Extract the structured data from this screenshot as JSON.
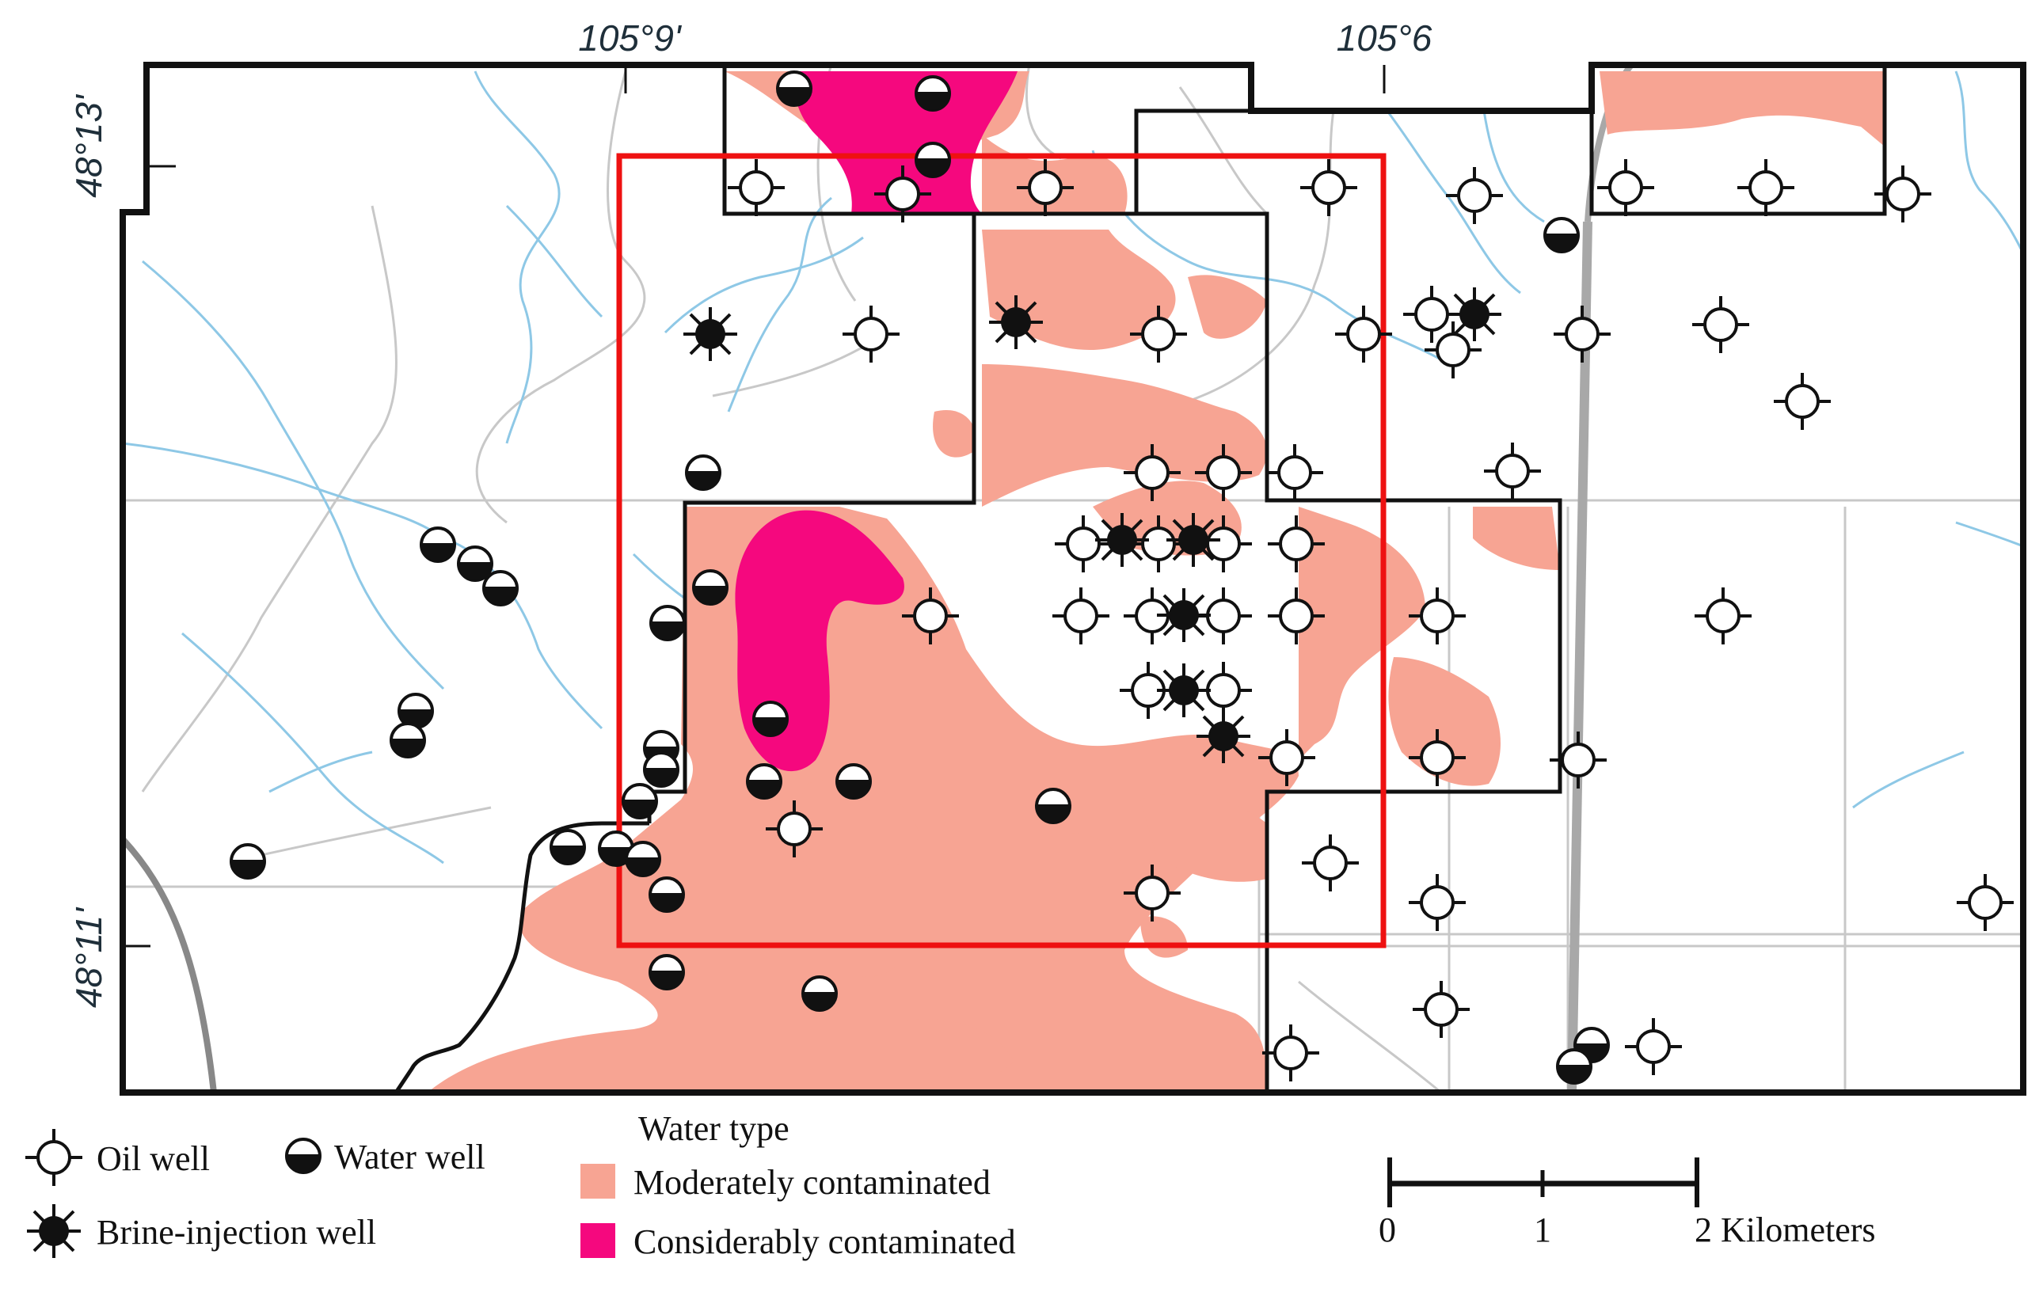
{
  "coordinates": {
    "top": [
      "105°9'",
      "105°6"
    ],
    "left": [
      "48°13'",
      "48°11'"
    ]
  },
  "colors": {
    "moderate": "#f7a493",
    "considerable": "#f5087e",
    "stream": "#8ec8e6",
    "road": "#c8c8c8",
    "boundary": "#111111",
    "study_area": "#ee1111"
  },
  "legend": {
    "oil_well": "Oil well",
    "water_well": "Water well",
    "brine_well": "Brine-injection well",
    "water_type_title": "Water type",
    "moderate": "Moderately contaminated",
    "considerable": "Considerably contaminated"
  },
  "scale": {
    "ticks": [
      "0",
      "1",
      "2 Kilometers"
    ]
  }
}
